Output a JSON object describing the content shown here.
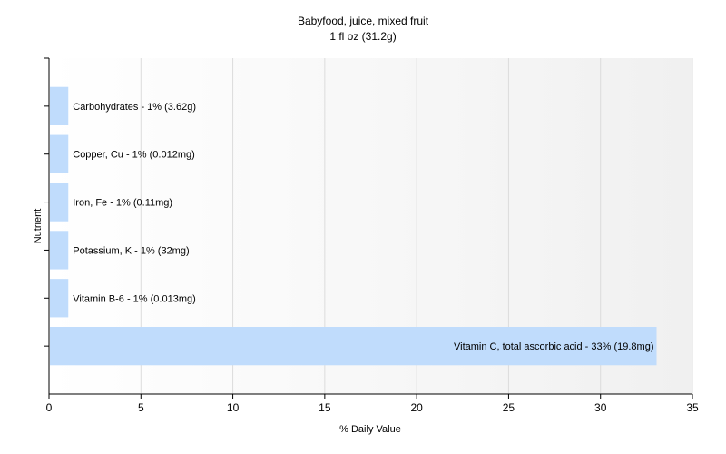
{
  "chart_data": {
    "type": "bar",
    "orientation": "horizontal",
    "title": "Babyfood, juice, mixed fruit",
    "subtitle": "1 fl oz (31.2g)",
    "xlabel": "% Daily Value",
    "ylabel": "Nutrient",
    "xlim": [
      0,
      35
    ],
    "xticks": [
      0,
      5,
      10,
      15,
      20,
      25,
      30,
      35
    ],
    "grid": "vertical",
    "bar_color": "#c0dcfc",
    "categories": [
      "Carbohydrates",
      "Copper, Cu",
      "Iron, Fe",
      "Potassium, K",
      "Vitamin B-6",
      "Vitamin C, total ascorbic acid"
    ],
    "values": [
      1,
      1,
      1,
      1,
      1,
      33
    ],
    "labels": [
      "Carbohydrates - 1% (3.62g)",
      "Copper, Cu - 1% (0.012mg)",
      "Iron, Fe - 1% (0.11mg)",
      "Potassium, K - 1% (32mg)",
      "Vitamin B-6 - 1% (0.013mg)",
      "Vitamin C, total ascorbic acid - 33% (19.8mg)"
    ]
  }
}
